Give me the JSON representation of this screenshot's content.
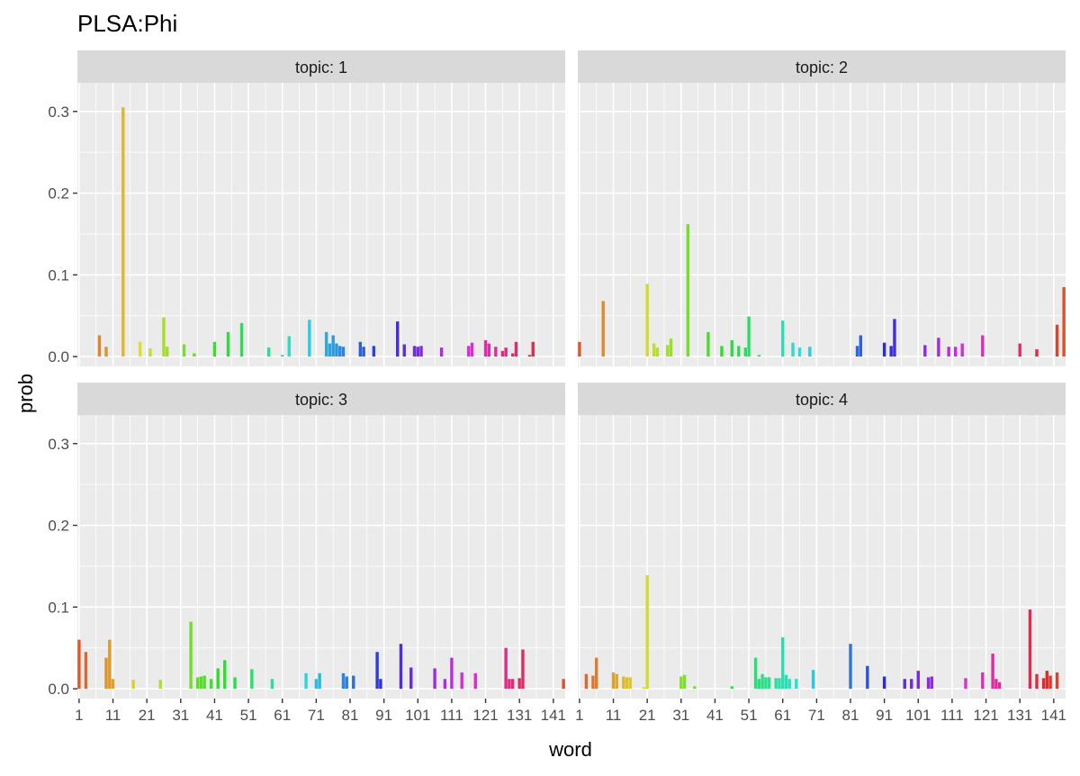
{
  "chart_data": {
    "type": "bar",
    "title": "PLSA:Phi",
    "xlabel": "word",
    "ylabel": "prob",
    "facet_prefix": "topic: ",
    "ylim": [
      -0.012,
      0.335
    ],
    "xlim": [
      0.5,
      144.5
    ],
    "x_ticks": [
      1,
      11,
      21,
      31,
      41,
      51,
      61,
      71,
      81,
      91,
      101,
      111,
      121,
      131,
      141
    ],
    "x_tick_labels": [
      "1",
      "11",
      "21",
      "31",
      "41",
      "51",
      "61",
      "71",
      "81",
      "91",
      "101",
      "111",
      "121",
      "131",
      "141"
    ],
    "y_ticks": [
      0.0,
      0.1,
      0.2,
      0.3
    ],
    "y_tick_labels": [
      "0.0",
      "0.1",
      "0.2",
      "0.3"
    ],
    "panel_bg": "#EBEBEB",
    "strip_bg": "#D9D9D9",
    "grid_color": "#FFFFFF",
    "color_scale": "hue-by-word",
    "legend": "none",
    "facets": [
      {
        "topic": "1",
        "words": [
          7,
          9,
          14,
          19,
          22,
          26,
          27,
          32,
          35,
          41,
          45,
          49,
          57,
          61,
          63,
          69,
          74,
          75,
          76,
          77,
          78,
          79,
          84,
          85,
          88,
          95,
          97,
          100,
          101,
          102,
          108,
          116,
          117,
          121,
          122,
          124,
          126,
          127,
          129,
          130,
          134,
          135
        ],
        "probs": [
          0.026,
          0.012,
          0.305,
          0.018,
          0.01,
          0.048,
          0.012,
          0.015,
          0.004,
          0.018,
          0.03,
          0.041,
          0.011,
          0.002,
          0.025,
          0.045,
          0.03,
          0.016,
          0.026,
          0.016,
          0.013,
          0.012,
          0.018,
          0.012,
          0.013,
          0.043,
          0.015,
          0.013,
          0.012,
          0.013,
          0.011,
          0.013,
          0.017,
          0.02,
          0.016,
          0.012,
          0.007,
          0.011,
          0.004,
          0.018,
          0.002,
          0.018
        ]
      },
      {
        "topic": "2",
        "words": [
          1,
          8,
          21,
          23,
          24,
          27,
          28,
          33,
          39,
          43,
          46,
          48,
          50,
          51,
          54,
          61,
          64,
          66,
          69,
          83,
          84,
          91,
          93,
          94,
          103,
          107,
          110,
          112,
          114,
          120,
          131,
          136,
          142,
          144
        ],
        "probs": [
          0.018,
          0.068,
          0.089,
          0.016,
          0.011,
          0.014,
          0.022,
          0.162,
          0.03,
          0.013,
          0.02,
          0.013,
          0.011,
          0.049,
          0.002,
          0.044,
          0.017,
          0.011,
          0.012,
          0.013,
          0.026,
          0.017,
          0.013,
          0.046,
          0.014,
          0.023,
          0.012,
          0.012,
          0.016,
          0.026,
          0.016,
          0.009,
          0.039,
          0.085
        ]
      },
      {
        "topic": "3",
        "words": [
          1,
          3,
          9,
          10,
          11,
          17,
          25,
          34,
          36,
          37,
          38,
          40,
          42,
          44,
          47,
          52,
          58,
          68,
          71,
          72,
          79,
          80,
          82,
          89,
          90,
          96,
          99,
          106,
          109,
          111,
          114,
          118,
          127,
          128,
          129,
          131,
          132,
          144
        ],
        "probs": [
          0.06,
          0.045,
          0.038,
          0.06,
          0.012,
          0.011,
          0.011,
          0.082,
          0.014,
          0.015,
          0.016,
          0.012,
          0.025,
          0.035,
          0.014,
          0.024,
          0.012,
          0.019,
          0.012,
          0.019,
          0.019,
          0.015,
          0.016,
          0.045,
          0.012,
          0.055,
          0.026,
          0.025,
          0.012,
          0.038,
          0.02,
          0.019,
          0.05,
          0.012,
          0.012,
          0.013,
          0.048,
          0.012
        ]
      },
      {
        "topic": "4",
        "words": [
          3,
          5,
          6,
          11,
          12,
          14,
          15,
          16,
          20,
          21,
          31,
          32,
          35,
          46,
          53,
          54,
          55,
          56,
          57,
          59,
          60,
          61,
          62,
          63,
          65,
          70,
          81,
          86,
          91,
          97,
          99,
          101,
          104,
          105,
          115,
          120,
          123,
          124,
          125,
          134,
          136,
          138,
          139,
          140,
          142
        ],
        "probs": [
          0.018,
          0.016,
          0.038,
          0.02,
          0.018,
          0.015,
          0.014,
          0.014,
          0.002,
          0.139,
          0.015,
          0.017,
          0.003,
          0.003,
          0.038,
          0.012,
          0.018,
          0.014,
          0.014,
          0.013,
          0.013,
          0.063,
          0.017,
          0.012,
          0.012,
          0.023,
          0.055,
          0.028,
          0.015,
          0.012,
          0.012,
          0.022,
          0.014,
          0.015,
          0.013,
          0.02,
          0.043,
          0.012,
          0.008,
          0.097,
          0.018,
          0.013,
          0.022,
          0.016,
          0.02
        ]
      }
    ]
  }
}
